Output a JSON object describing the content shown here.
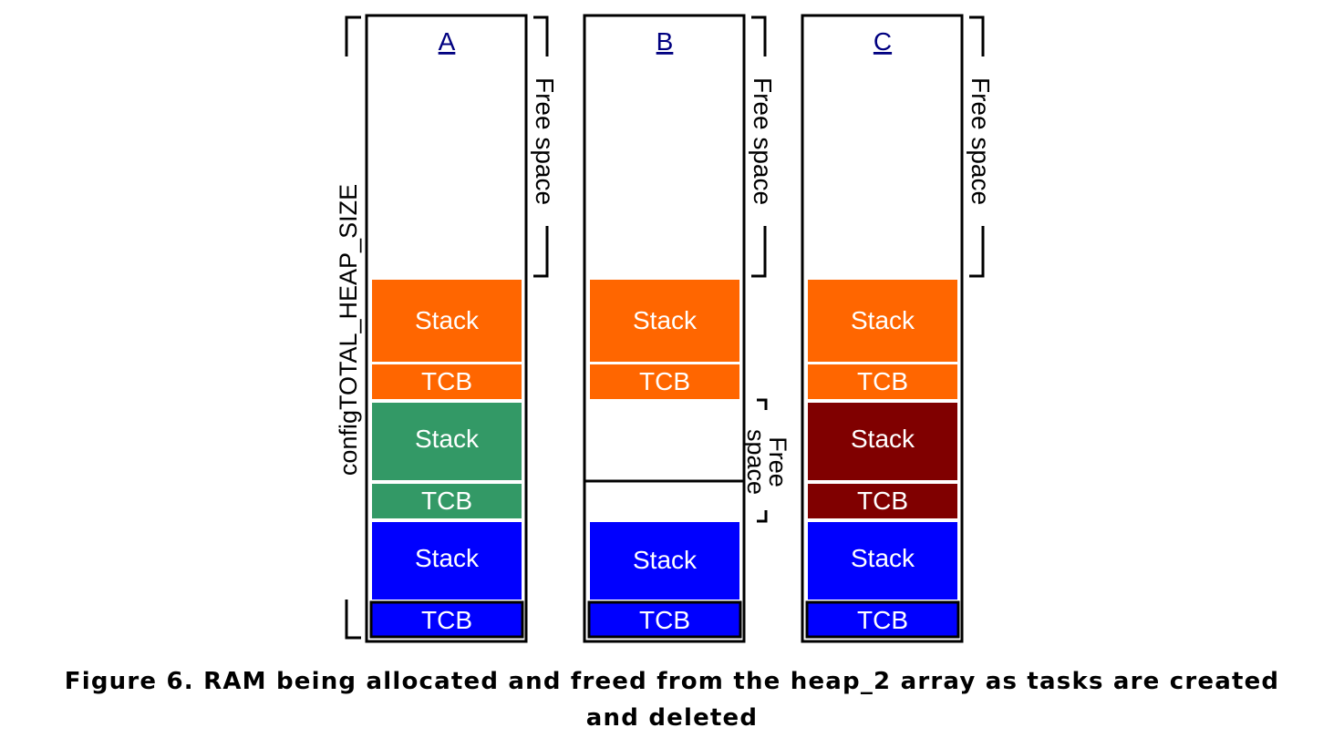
{
  "diagram": {
    "heap_label": "configTOTAL_HEAP_SIZE",
    "colors": {
      "orange": "#ff6600",
      "green": "#339966",
      "blue": "#0000ff",
      "dark_red": "#800000",
      "border": "#000000",
      "label_blue": "#000080"
    },
    "columns": [
      {
        "id": "A",
        "label": "A",
        "free_label": "Free space",
        "blocks": [
          {
            "label": "Stack",
            "color": "orange"
          },
          {
            "label": "TCB",
            "color": "orange"
          },
          {
            "label": "Stack",
            "color": "green"
          },
          {
            "label": "TCB",
            "color": "green"
          },
          {
            "label": "Stack",
            "color": "blue"
          },
          {
            "label": "TCB",
            "color": "blue"
          }
        ]
      },
      {
        "id": "B",
        "label": "B",
        "free_label": "Free space",
        "inner_free_label_1": "Free",
        "inner_free_label_2": "space",
        "blocks": [
          {
            "label": "Stack",
            "color": "orange"
          },
          {
            "label": "TCB",
            "color": "orange"
          },
          {
            "label": "Stack",
            "color": "blue"
          },
          {
            "label": "TCB",
            "color": "blue"
          }
        ]
      },
      {
        "id": "C",
        "label": "C",
        "free_label": "Free space",
        "blocks": [
          {
            "label": "Stack",
            "color": "orange"
          },
          {
            "label": "TCB",
            "color": "orange"
          },
          {
            "label": "Stack",
            "color": "dark_red"
          },
          {
            "label": "TCB",
            "color": "dark_red"
          },
          {
            "label": "Stack",
            "color": "blue"
          },
          {
            "label": "TCB",
            "color": "blue"
          }
        ]
      }
    ]
  },
  "caption": {
    "line1": "Figure 6.  RAM being allocated and freed from the heap_2 array as tasks are created",
    "line2": "and deleted"
  }
}
